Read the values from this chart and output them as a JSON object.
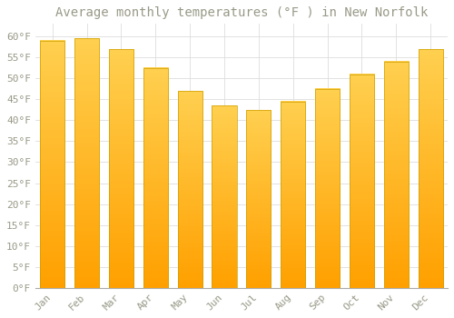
{
  "title": "Average monthly temperatures (°F ) in New Norfolk",
  "months": [
    "Jan",
    "Feb",
    "Mar",
    "Apr",
    "May",
    "Jun",
    "Jul",
    "Aug",
    "Sep",
    "Oct",
    "Nov",
    "Dec"
  ],
  "values": [
    59.0,
    59.5,
    57.0,
    52.5,
    47.0,
    43.5,
    42.5,
    44.5,
    47.5,
    51.0,
    54.0,
    57.0
  ],
  "bar_color_top": "#FFD050",
  "bar_color_bottom": "#FFA000",
  "bar_edge_color": "#CCA000",
  "background_color": "#FFFFFF",
  "grid_color": "#DDDDDD",
  "text_color": "#999988",
  "ylim": [
    0,
    63
  ],
  "yticks": [
    0,
    5,
    10,
    15,
    20,
    25,
    30,
    35,
    40,
    45,
    50,
    55,
    60
  ],
  "title_fontsize": 10,
  "tick_fontsize": 8,
  "font_family": "monospace",
  "bar_width": 0.72
}
